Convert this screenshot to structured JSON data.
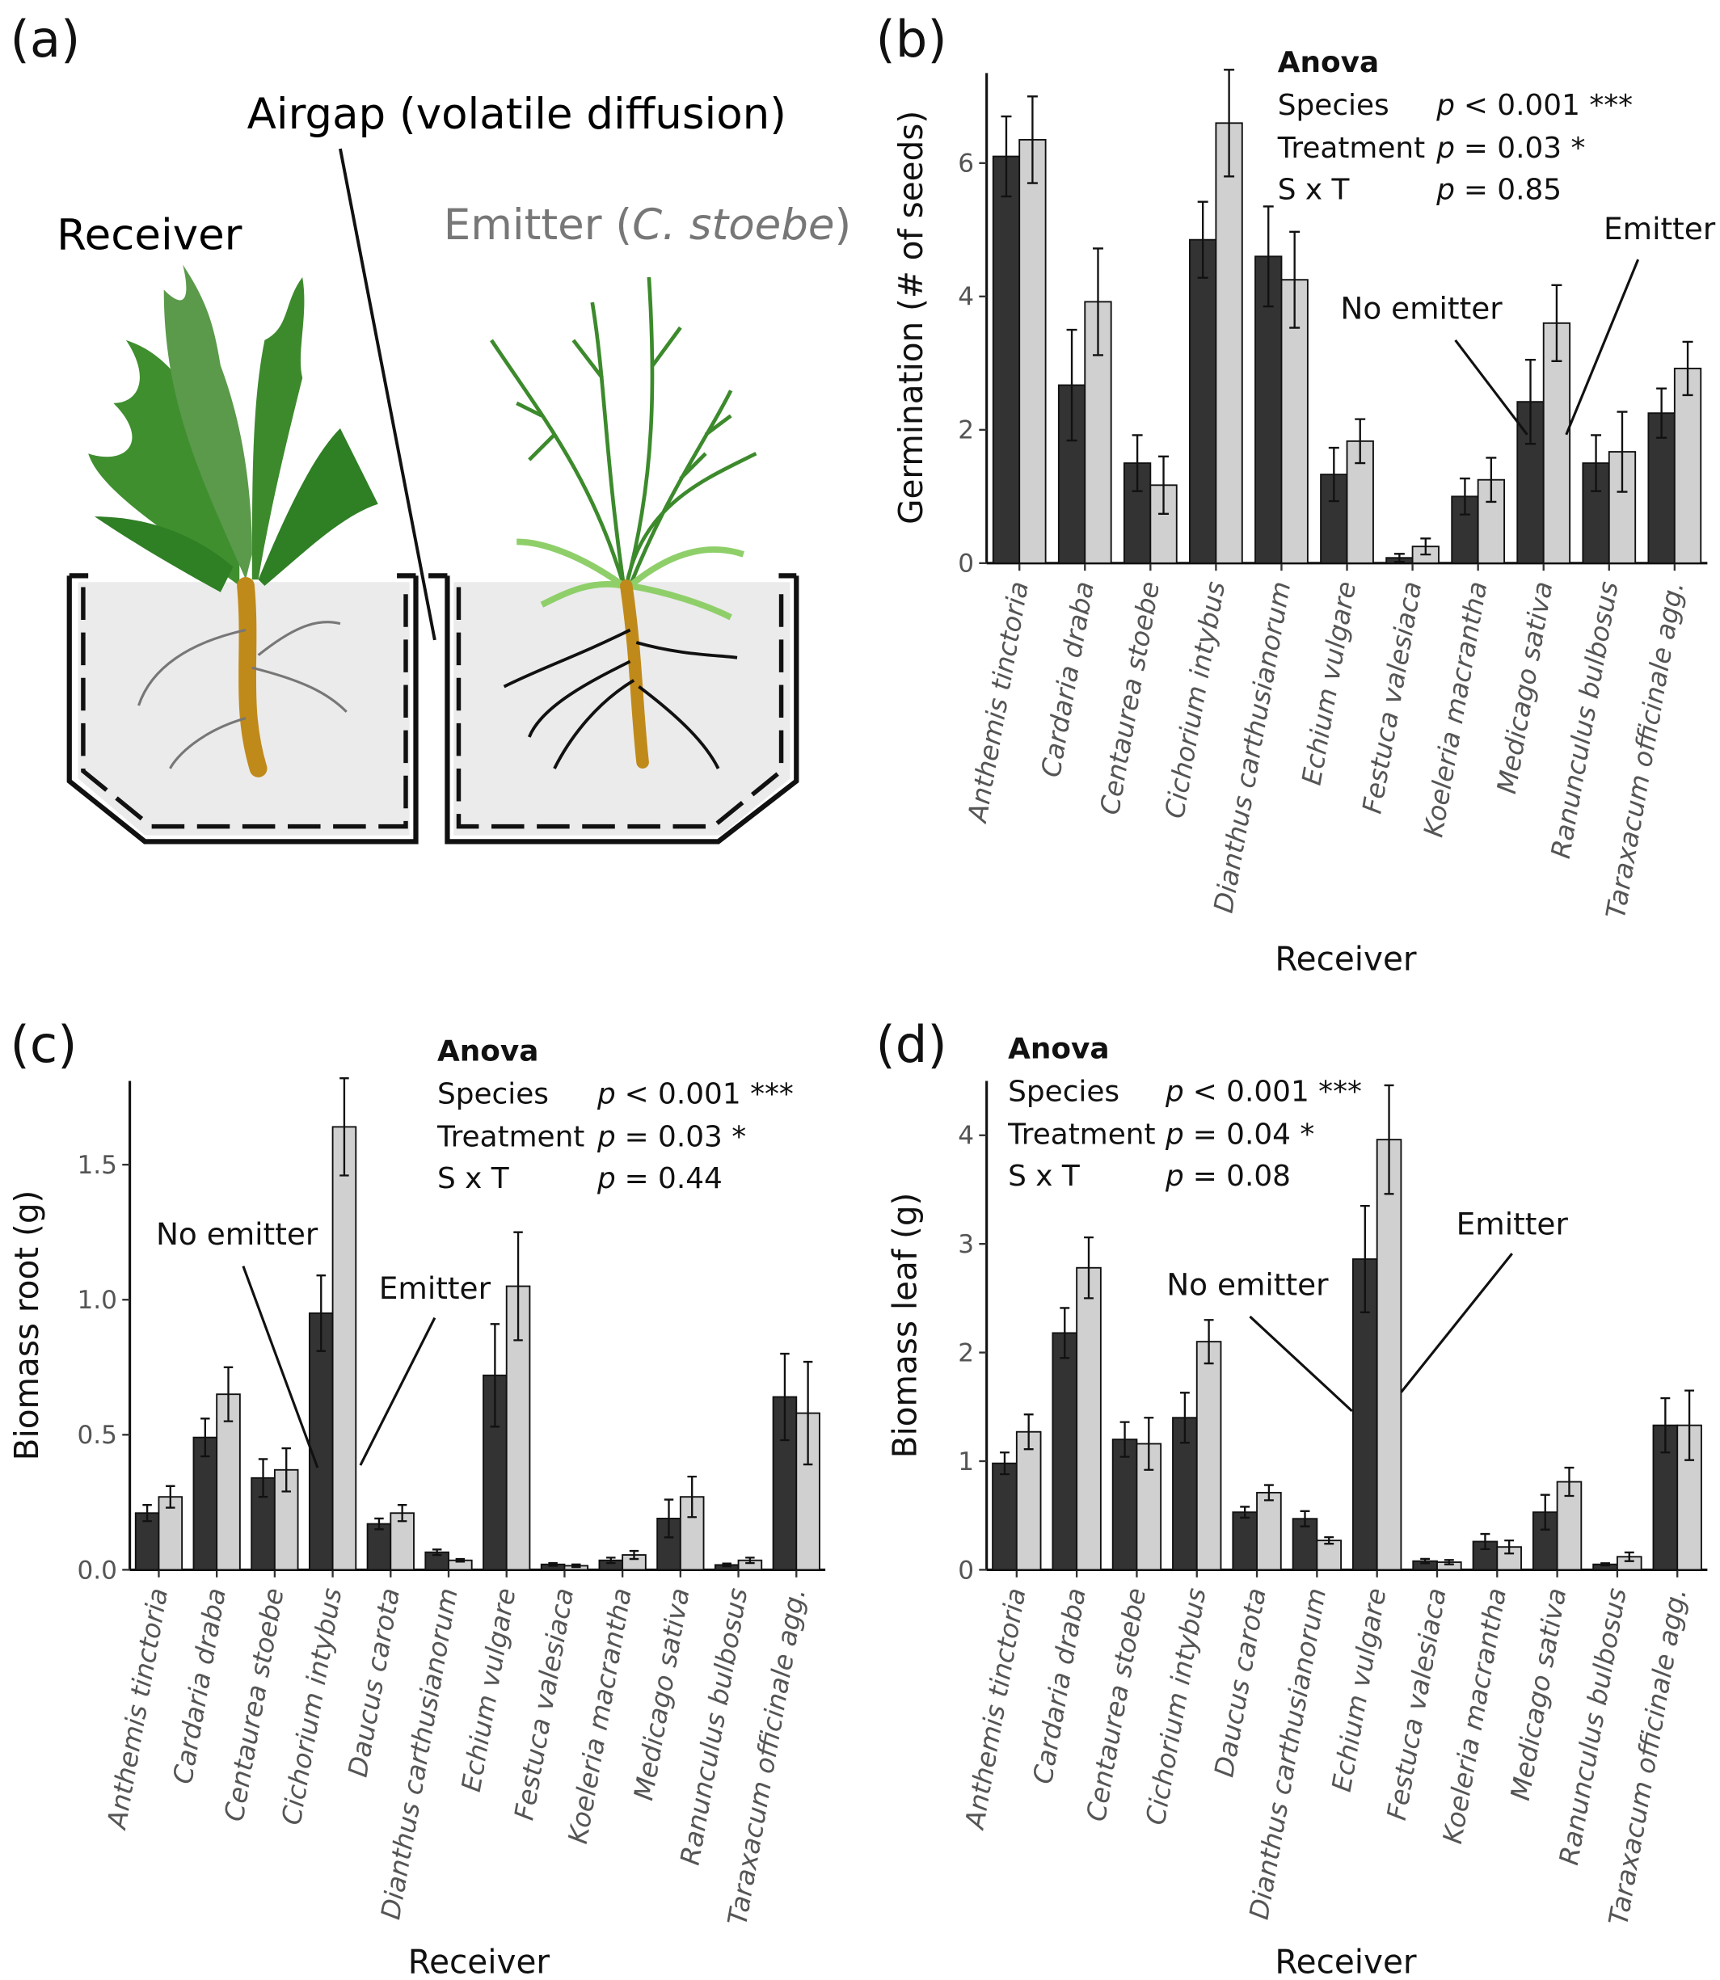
{
  "panel_a": {
    "panel": "(a)",
    "airgap": "Airgap (volatile diffusion)",
    "receiver": "Receiver",
    "emitter": [
      "Emitter (",
      "C. stoebe",
      ")"
    ]
  },
  "chart_data": [
    {
      "type": "bar",
      "panel": "(b)",
      "y_label": "Germination (# of seeds)",
      "x_label": "Receiver",
      "anova": {
        "title": "Anova",
        "rows": [
          [
            "Species",
            "p",
            "< 0.001 ***"
          ],
          [
            "Treatment",
            "p",
            "= 0.03 *"
          ],
          [
            "S x T",
            "p",
            "= 0.85"
          ]
        ]
      },
      "categories": [
        "Anthemis tinctoria",
        "Cardaria draba",
        "Centaurea stoebe",
        "Cichorium intybus",
        "Dianthus carthusianorum",
        "Echium vulgare",
        "Festuca valesiaca",
        "Koeleria macrantha",
        "Medicago sativa",
        "Ranunculus bulbosus",
        "Taraxacum officinale agg."
      ],
      "series": [
        {
          "name": "No emitter",
          "color": "#333333",
          "values": [
            6.1,
            2.67,
            1.5,
            4.85,
            4.6,
            1.33,
            0.08,
            1.0,
            2.42,
            1.5,
            2.25
          ],
          "errors": [
            0.6,
            0.83,
            0.42,
            0.57,
            0.75,
            0.4,
            0.06,
            0.27,
            0.63,
            0.42,
            0.37
          ]
        },
        {
          "name": "Emitter",
          "color": "#d0d0d0",
          "values": [
            6.35,
            3.92,
            1.17,
            6.6,
            4.25,
            1.83,
            0.25,
            1.25,
            3.6,
            1.67,
            2.92
          ],
          "errors": [
            0.65,
            0.8,
            0.43,
            0.8,
            0.72,
            0.33,
            0.12,
            0.33,
            0.57,
            0.6,
            0.4
          ]
        }
      ],
      "ylim": [
        0,
        7.35
      ],
      "yticks": [
        0,
        2,
        4,
        6
      ]
    },
    {
      "type": "bar",
      "panel": "(c)",
      "y_label": "Biomass root (g)",
      "x_label": "Receiver",
      "anova": {
        "title": "Anova",
        "rows": [
          [
            "Species",
            "p",
            "< 0.001 ***"
          ],
          [
            "Treatment",
            "p",
            "= 0.03 *"
          ],
          [
            "S x T",
            "p",
            "= 0.44"
          ]
        ]
      },
      "categories": [
        "Anthemis tinctoria",
        "Cardaria draba",
        "Centaurea stoebe",
        "Cichorium intybus",
        "Daucus carota",
        "Dianthus carthusianorum",
        "Echium vulgare",
        "Festuca valesiaca",
        "Koeleria macrantha",
        "Medicago sativa",
        "Ranunculus bulbosus",
        "Taraxacum officinale agg."
      ],
      "series": [
        {
          "name": "No emitter",
          "color": "#333333",
          "values": [
            0.21,
            0.49,
            0.34,
            0.95,
            0.17,
            0.065,
            0.72,
            0.02,
            0.035,
            0.19,
            0.018,
            0.64
          ],
          "errors": [
            0.03,
            0.07,
            0.07,
            0.14,
            0.02,
            0.01,
            0.19,
            0.005,
            0.01,
            0.07,
            0.005,
            0.16
          ]
        },
        {
          "name": "Emitter",
          "color": "#d0d0d0",
          "values": [
            0.27,
            0.65,
            0.37,
            1.64,
            0.21,
            0.035,
            1.05,
            0.015,
            0.055,
            0.27,
            0.035,
            0.58
          ],
          "errors": [
            0.04,
            0.1,
            0.08,
            0.18,
            0.03,
            0.005,
            0.2,
            0.005,
            0.015,
            0.075,
            0.01,
            0.19
          ]
        }
      ],
      "ylim": [
        0,
        1.81
      ],
      "yticks": [
        {
          "value": 0,
          "label": "0.0"
        },
        0.5,
        {
          "value": 1,
          "label": "1.0"
        },
        1.5
      ]
    },
    {
      "type": "bar",
      "panel": "(d)",
      "y_label": "Biomass leaf (g)",
      "x_label": "Receiver",
      "anova": {
        "title": "Anova",
        "rows": [
          [
            "Species",
            "p",
            "< 0.001 ***"
          ],
          [
            "Treatment",
            "p",
            "= 0.04 *"
          ],
          [
            "S x T",
            "p",
            "= 0.08"
          ]
        ]
      },
      "categories": [
        "Anthemis tinctoria",
        "Cardaria draba",
        "Centaurea stoebe",
        "Cichorium intybus",
        "Daucus carota",
        "Dianthus carthusianorum",
        "Echium vulgare",
        "Festuca valesiaca",
        "Koeleria macrantha",
        "Medicago sativa",
        "Ranunculus bulbosus",
        "Taraxacum officinale agg."
      ],
      "series": [
        {
          "name": "No emitter",
          "color": "#333333",
          "values": [
            0.98,
            2.18,
            1.2,
            1.4,
            0.53,
            0.47,
            2.86,
            0.08,
            0.26,
            0.53,
            0.05,
            1.33
          ],
          "errors": [
            0.1,
            0.23,
            0.16,
            0.23,
            0.05,
            0.07,
            0.49,
            0.02,
            0.07,
            0.16,
            0.01,
            0.25
          ]
        },
        {
          "name": "Emitter",
          "color": "#d0d0d0",
          "values": [
            1.27,
            2.78,
            1.16,
            2.1,
            0.71,
            0.27,
            3.96,
            0.07,
            0.21,
            0.81,
            0.12,
            1.33
          ],
          "errors": [
            0.16,
            0.28,
            0.24,
            0.2,
            0.07,
            0.03,
            0.5,
            0.02,
            0.06,
            0.13,
            0.04,
            0.32
          ]
        }
      ],
      "ylim": [
        0,
        4.5
      ],
      "yticks": [
        0,
        1,
        2,
        3,
        4
      ]
    }
  ]
}
